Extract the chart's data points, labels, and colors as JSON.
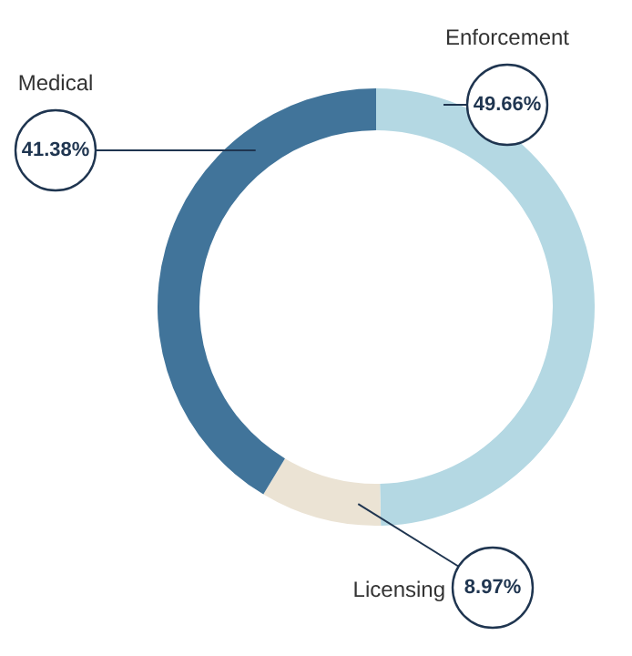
{
  "chart_data": {
    "type": "donut",
    "categories": [
      "Enforcement",
      "Licensing",
      "Medical"
    ],
    "values": [
      49.66,
      8.97,
      41.38
    ],
    "colors": [
      "#b4d8e3",
      "#ebe3d4",
      "#41749a"
    ],
    "value_labels": [
      "49.66%",
      "8.97%",
      "41.38%"
    ]
  }
}
